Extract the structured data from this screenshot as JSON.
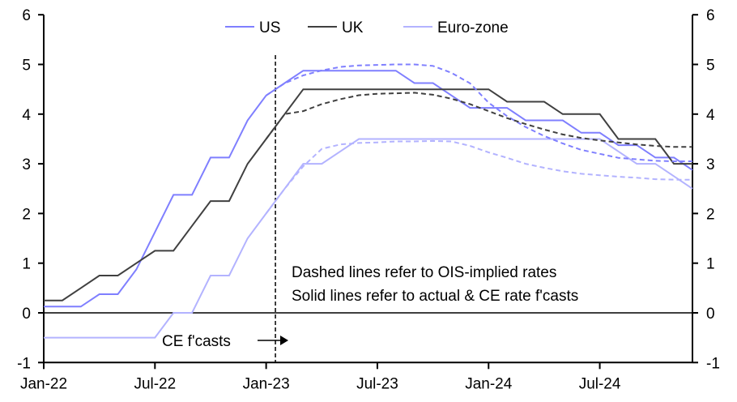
{
  "chart_data": {
    "type": "line",
    "x": [
      "Jan-22",
      "Feb-22",
      "Mar-22",
      "Apr-22",
      "May-22",
      "Jun-22",
      "Jul-22",
      "Aug-22",
      "Sep-22",
      "Oct-22",
      "Nov-22",
      "Dec-22",
      "Jan-23",
      "Feb-23",
      "Mar-23",
      "Apr-23",
      "May-23",
      "Jun-23",
      "Jul-23",
      "Aug-23",
      "Sep-23",
      "Oct-23",
      "Nov-23",
      "Dec-23",
      "Jan-24",
      "Feb-24",
      "Mar-24",
      "Apr-24",
      "May-24",
      "Jun-24",
      "Jul-24",
      "Aug-24",
      "Sep-24",
      "Oct-24",
      "Nov-24",
      "Dec-24"
    ],
    "xtick_labels": [
      "Jan-22",
      "Jul-22",
      "Jan-23",
      "Jul-23",
      "Jan-24",
      "Jul-24"
    ],
    "ylim": [
      -1,
      6
    ],
    "yticks": [
      -1,
      0,
      1,
      2,
      3,
      4,
      5,
      6
    ],
    "grid": false,
    "legend_position": "top",
    "series": [
      {
        "name": "US",
        "style": "solid",
        "color": "#7f7fff",
        "values": [
          0.125,
          0.125,
          0.125,
          0.375,
          0.375,
          0.875,
          1.625,
          2.375,
          2.375,
          3.125,
          3.125,
          3.875,
          4.375,
          4.625,
          4.875,
          4.875,
          4.875,
          4.875,
          4.875,
          4.875,
          4.625,
          4.625,
          4.375,
          4.125,
          4.125,
          4.125,
          3.875,
          3.875,
          3.875,
          3.625,
          3.625,
          3.375,
          3.375,
          3.125,
          3.125,
          2.875
        ]
      },
      {
        "name": "UK",
        "style": "solid",
        "color": "#404040",
        "values": [
          0.25,
          0.25,
          0.5,
          0.75,
          0.75,
          1.0,
          1.25,
          1.25,
          1.75,
          2.25,
          2.25,
          3.0,
          3.5,
          4.0,
          4.5,
          4.5,
          4.5,
          4.5,
          4.5,
          4.5,
          4.5,
          4.5,
          4.5,
          4.5,
          4.5,
          4.25,
          4.25,
          4.25,
          4.0,
          4.0,
          4.0,
          3.5,
          3.5,
          3.5,
          3.0,
          3.0
        ]
      },
      {
        "name": "Euro-zone",
        "style": "solid",
        "color": "#b3b3ff",
        "values": [
          -0.5,
          -0.5,
          -0.5,
          -0.5,
          -0.5,
          -0.5,
          -0.5,
          0.0,
          0.0,
          0.75,
          0.75,
          1.5,
          2.0,
          2.5,
          3.0,
          3.0,
          3.25,
          3.5,
          3.5,
          3.5,
          3.5,
          3.5,
          3.5,
          3.5,
          3.5,
          3.5,
          3.5,
          3.5,
          3.5,
          3.5,
          3.5,
          3.25,
          3.0,
          3.0,
          2.75,
          2.5
        ]
      },
      {
        "style": "dashed",
        "color": "#7f7fff",
        "values": [
          null,
          null,
          null,
          null,
          null,
          null,
          null,
          null,
          null,
          null,
          null,
          null,
          4.375,
          4.62,
          4.78,
          4.88,
          4.95,
          4.98,
          4.99,
          5.0,
          5.0,
          4.97,
          4.83,
          4.62,
          4.23,
          3.96,
          3.74,
          3.56,
          3.41,
          3.28,
          3.2,
          3.12,
          3.09,
          3.06,
          3.05,
          3.05
        ]
      },
      {
        "style": "dashed",
        "color": "#404040",
        "values": [
          null,
          null,
          null,
          null,
          null,
          null,
          null,
          null,
          null,
          null,
          null,
          null,
          3.5,
          4.0,
          4.06,
          4.2,
          4.3,
          4.38,
          4.41,
          4.42,
          4.43,
          4.39,
          4.31,
          4.2,
          4.06,
          3.92,
          3.8,
          3.69,
          3.59,
          3.52,
          3.47,
          3.43,
          3.39,
          3.36,
          3.34,
          3.34
        ]
      },
      {
        "style": "dashed",
        "color": "#b3b3ff",
        "values": [
          null,
          null,
          null,
          null,
          null,
          null,
          null,
          null,
          null,
          null,
          null,
          null,
          2.0,
          2.5,
          2.95,
          3.3,
          3.39,
          3.42,
          3.43,
          3.45,
          3.45,
          3.46,
          3.45,
          3.36,
          3.23,
          3.12,
          3.0,
          2.92,
          2.85,
          2.8,
          2.77,
          2.74,
          2.72,
          2.69,
          2.68,
          2.68
        ]
      }
    ],
    "forecast_start": 12.5,
    "annotations": {
      "forecast_label": "CE f'casts",
      "note_line1": "Dashed lines refer to OIS-implied rates",
      "note_line2": "Solid lines refer to actual & CE rate f'casts"
    }
  }
}
